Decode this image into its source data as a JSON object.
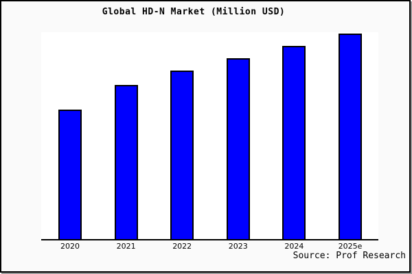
{
  "title": "Global HD-N Market (Million USD)",
  "source": "Source: Prof Research",
  "colors": {
    "bar_fill": "#0000fe",
    "bar_border": "#000000",
    "axis": "#000000",
    "panel_background": "#fafafa",
    "plot_background": "#ffffff",
    "frame_border": "#000000"
  },
  "chart_data": {
    "type": "bar",
    "title": "Global HD-N Market (Million USD)",
    "categories": [
      "2020",
      "2021",
      "2022",
      "2023",
      "2024",
      "2025e"
    ],
    "values": [
      63,
      75,
      82,
      88,
      94,
      100
    ],
    "value_basis": "estimated relative heights; no y-axis ticks or value labels are shown, tallest bar (2025e) = 100",
    "xlabel": "",
    "ylabel": "",
    "ylim": [
      0,
      105
    ],
    "grid": false,
    "legend": false,
    "y_axis_visible": false,
    "annotations": [
      "Source: Prof Research"
    ]
  }
}
